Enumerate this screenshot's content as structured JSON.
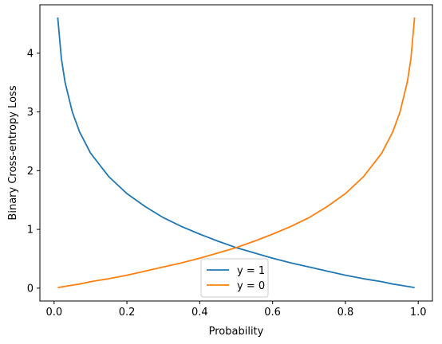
{
  "chart_data": {
    "type": "line",
    "xlabel": "Probability",
    "ylabel": "Binary Cross-entropy Loss",
    "xlim": [
      -0.039,
      1.039
    ],
    "ylim": [
      -0.219,
      4.825
    ],
    "x_ticks": [
      0.0,
      0.2,
      0.4,
      0.6,
      0.8,
      1.0
    ],
    "x_tick_labels": [
      "0.0",
      "0.2",
      "0.4",
      "0.6",
      "0.8",
      "1.0"
    ],
    "y_ticks": [
      0,
      1,
      2,
      3,
      4
    ],
    "y_tick_labels": [
      "0",
      "1",
      "2",
      "3",
      "4"
    ],
    "grid": false,
    "legend_position": "lower center",
    "x": [
      0.01,
      0.02,
      0.03,
      0.05,
      0.07,
      0.1,
      0.15,
      0.2,
      0.25,
      0.3,
      0.35,
      0.4,
      0.45,
      0.5,
      0.55,
      0.6,
      0.65,
      0.7,
      0.75,
      0.8,
      0.85,
      0.9,
      0.93,
      0.95,
      0.97,
      0.98,
      0.99
    ],
    "series": [
      {
        "name": "y = 1",
        "color": "#1f77b4",
        "values": [
          4.61,
          3.91,
          3.51,
          3.0,
          2.66,
          2.3,
          1.9,
          1.61,
          1.39,
          1.2,
          1.05,
          0.92,
          0.8,
          0.69,
          0.6,
          0.51,
          0.43,
          0.36,
          0.29,
          0.22,
          0.16,
          0.11,
          0.07,
          0.05,
          0.03,
          0.02,
          0.01
        ]
      },
      {
        "name": "y = 0",
        "color": "#ff7f0e",
        "values": [
          0.01,
          0.02,
          0.03,
          0.05,
          0.07,
          0.11,
          0.16,
          0.22,
          0.29,
          0.36,
          0.43,
          0.51,
          0.6,
          0.69,
          0.8,
          0.92,
          1.05,
          1.2,
          1.39,
          1.61,
          1.9,
          2.3,
          2.66,
          3.0,
          3.51,
          3.91,
          4.61
        ]
      }
    ]
  }
}
